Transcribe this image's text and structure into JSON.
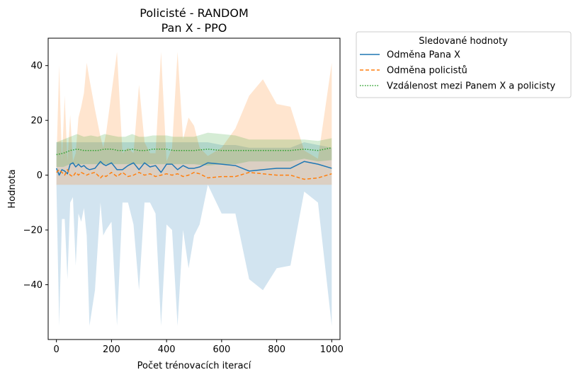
{
  "chart_data": {
    "type": "line",
    "title": "Policisté - RANDOM",
    "subtitle": "Pan X - PPO",
    "xlabel": "Počet trénovacích iterací",
    "ylabel": "Hodnota",
    "xlim": [
      -30,
      1030
    ],
    "ylim": [
      -60,
      50
    ],
    "xticks": [
      0,
      200,
      400,
      600,
      800,
      1000
    ],
    "yticks": [
      -40,
      -20,
      0,
      20,
      40
    ],
    "xtick_labels": [
      "0",
      "200",
      "400",
      "600",
      "800",
      "1000"
    ],
    "ytick_labels": [
      "−40",
      "−20",
      "0",
      "20",
      "40"
    ],
    "grid": false,
    "legend_position": "outside-top-right",
    "legend_title": "Sledované hodnoty",
    "series": [
      {
        "name": "Odměna Pana X",
        "color": "#1f77b4",
        "linestyle": "solid",
        "x": [
          0,
          10,
          20,
          30,
          40,
          50,
          60,
          70,
          80,
          90,
          100,
          110,
          120,
          140,
          160,
          170,
          180,
          200,
          220,
          240,
          260,
          280,
          300,
          320,
          340,
          360,
          380,
          400,
          420,
          440,
          460,
          480,
          500,
          520,
          550,
          600,
          650,
          700,
          750,
          800,
          850,
          900,
          950,
          1000
        ],
        "values": [
          2.5,
          0,
          2,
          1.5,
          0.5,
          4,
          4.5,
          3,
          4,
          3,
          3.5,
          2.5,
          2,
          2.5,
          5,
          4,
          3.5,
          4.5,
          2,
          2,
          3.5,
          4.5,
          2,
          4.5,
          3,
          3.5,
          1,
          4,
          4,
          2,
          3.5,
          2.5,
          2.5,
          3,
          4.5,
          4,
          3.5,
          1.5,
          2,
          2.5,
          2.5,
          5,
          4,
          2.5
        ],
        "lower": [
          -3.5,
          -55,
          -16,
          -16,
          -38,
          -10,
          -8,
          -33,
          -14,
          -17,
          -12,
          -22,
          -55,
          -42,
          -10,
          -22,
          -20,
          -17,
          -55,
          -10,
          -10,
          -18,
          -42,
          -10,
          -10,
          -14,
          -55,
          -18,
          -20,
          -55,
          -20,
          -34,
          -22,
          -18,
          -3.5,
          -14,
          -14,
          -38,
          -42,
          -34,
          -33,
          -6,
          -10,
          -55
        ],
        "upper": [
          12,
          12,
          12,
          12,
          12,
          12,
          12,
          12,
          12,
          12,
          12,
          12,
          12,
          12,
          12,
          12,
          12,
          12,
          12,
          12,
          12,
          12,
          12,
          12,
          12,
          12,
          12,
          12,
          12,
          12,
          12,
          12,
          12,
          12,
          12,
          11,
          11,
          10,
          10,
          10,
          10,
          12,
          11,
          10
        ]
      },
      {
        "name": "Odměna policistů",
        "color": "#ff7f0e",
        "linestyle": "dashed",
        "x": [
          0,
          10,
          20,
          30,
          40,
          50,
          60,
          70,
          80,
          90,
          100,
          110,
          120,
          140,
          160,
          170,
          180,
          200,
          220,
          240,
          260,
          280,
          300,
          320,
          340,
          360,
          380,
          400,
          420,
          440,
          460,
          480,
          500,
          520,
          550,
          600,
          650,
          700,
          750,
          800,
          850,
          900,
          950,
          1000
        ],
        "values": [
          1,
          2,
          1,
          0,
          2,
          0,
          -0.5,
          1,
          0,
          1,
          0.5,
          0,
          0.5,
          1,
          -1,
          0,
          -0.5,
          1,
          -0.5,
          1,
          -0.5,
          0,
          1,
          0,
          0.5,
          -0.5,
          0,
          0.5,
          0,
          0.5,
          -0.5,
          0,
          1,
          0.5,
          -1,
          -0.5,
          -0.5,
          1,
          0.5,
          0,
          0,
          -1.5,
          -1,
          0.5
        ],
        "lower": [
          -3.5,
          -3.5,
          -3.5,
          -3.5,
          -3.5,
          -3.5,
          -3.5,
          -3.5,
          -3.5,
          -3.5,
          -3.5,
          -3.5,
          -3.5,
          -3.5,
          -3.5,
          -3.5,
          -3.5,
          -3.5,
          -3.5,
          -3.5,
          -3.5,
          -3.5,
          -3.5,
          -3.5,
          -3.5,
          -3.5,
          -3.5,
          -3.5,
          -3.5,
          -3.5,
          -3.5,
          -3.5,
          -3.5,
          -3.5,
          -3.5,
          -3.5,
          -3.5,
          -3.5,
          -3.5,
          -3.5,
          -3.5,
          -3.5,
          -3.5,
          -3.5
        ],
        "upper": [
          5,
          40,
          5,
          29,
          5,
          22,
          5,
          8,
          21,
          25,
          30,
          41,
          35,
          24,
          14,
          10,
          15,
          30,
          45,
          8,
          10,
          8,
          33,
          12,
          8,
          8,
          45,
          5,
          10,
          45,
          13,
          21,
          18,
          10,
          7,
          10,
          17,
          29,
          35,
          26,
          25,
          9,
          6,
          41
        ]
      },
      {
        "name": "Vzdálenost mezi Panem X a policisty",
        "color": "#2ca02c",
        "linestyle": "dotted",
        "x": [
          0,
          25,
          50,
          75,
          100,
          125,
          150,
          175,
          200,
          225,
          250,
          275,
          300,
          325,
          350,
          375,
          400,
          425,
          450,
          475,
          500,
          550,
          600,
          650,
          700,
          750,
          800,
          850,
          900,
          950,
          1000
        ],
        "values": [
          7.5,
          8,
          9,
          9.5,
          9,
          9,
          9,
          9.5,
          9.5,
          9,
          9,
          9.5,
          9,
          9,
          9.5,
          9.5,
          9.5,
          9,
          9,
          9,
          9,
          9.5,
          9,
          9,
          9,
          9,
          9,
          9,
          9.5,
          9,
          10
        ],
        "lower": [
          3,
          3,
          4,
          4,
          4,
          4,
          4,
          4,
          4,
          4,
          4,
          4,
          4,
          4,
          4,
          4,
          4,
          4,
          4,
          4,
          4,
          3.5,
          4,
          4,
          5,
          5,
          5,
          5,
          6,
          5,
          5.5
        ],
        "upper": [
          12,
          13,
          14,
          15,
          14,
          14.5,
          14,
          15,
          14.5,
          14,
          14,
          15,
          14,
          14,
          14.5,
          14.5,
          14.5,
          14,
          14,
          14,
          14,
          15.5,
          15,
          14.5,
          13,
          13,
          13,
          13,
          13,
          12.5,
          13.5
        ]
      }
    ]
  }
}
